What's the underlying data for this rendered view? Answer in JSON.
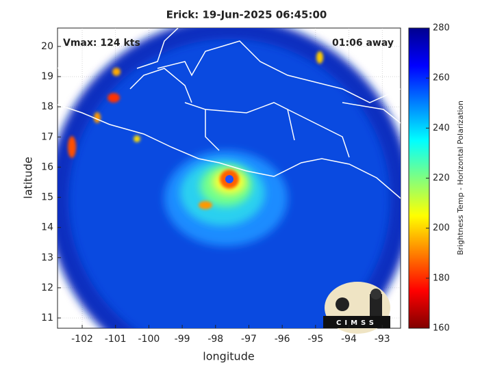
{
  "chart_data": {
    "type": "image",
    "title": "Erick: 19-Jun-2025 06:45:00",
    "annotations": [
      "Vmax: 124 kts",
      "01:06 away"
    ],
    "xlabel": "longitude",
    "ylabel": "latitude",
    "xlim": [
      -102.74,
      -92.45
    ],
    "ylim": [
      10.66,
      20.61
    ],
    "xticks": [
      -102,
      -101,
      -100,
      -99,
      -98,
      -97,
      -96,
      -95,
      -94,
      -93
    ],
    "yticks": [
      11,
      12,
      13,
      14,
      15,
      16,
      17,
      18,
      19,
      20
    ],
    "grid": true,
    "colorbar": {
      "label": "Brightness Temp - Horizontal Polarization",
      "lim": [
        160,
        280
      ],
      "ticks": [
        160,
        180,
        200,
        220,
        240,
        260,
        280
      ],
      "colors": [
        "#800000",
        "#ff0000",
        "#ff8000",
        "#ffff00",
        "#80ff80",
        "#00ffff",
        "#0080ff",
        "#0000ff",
        "#00008f"
      ]
    },
    "logo_text": "CIMSS"
  }
}
